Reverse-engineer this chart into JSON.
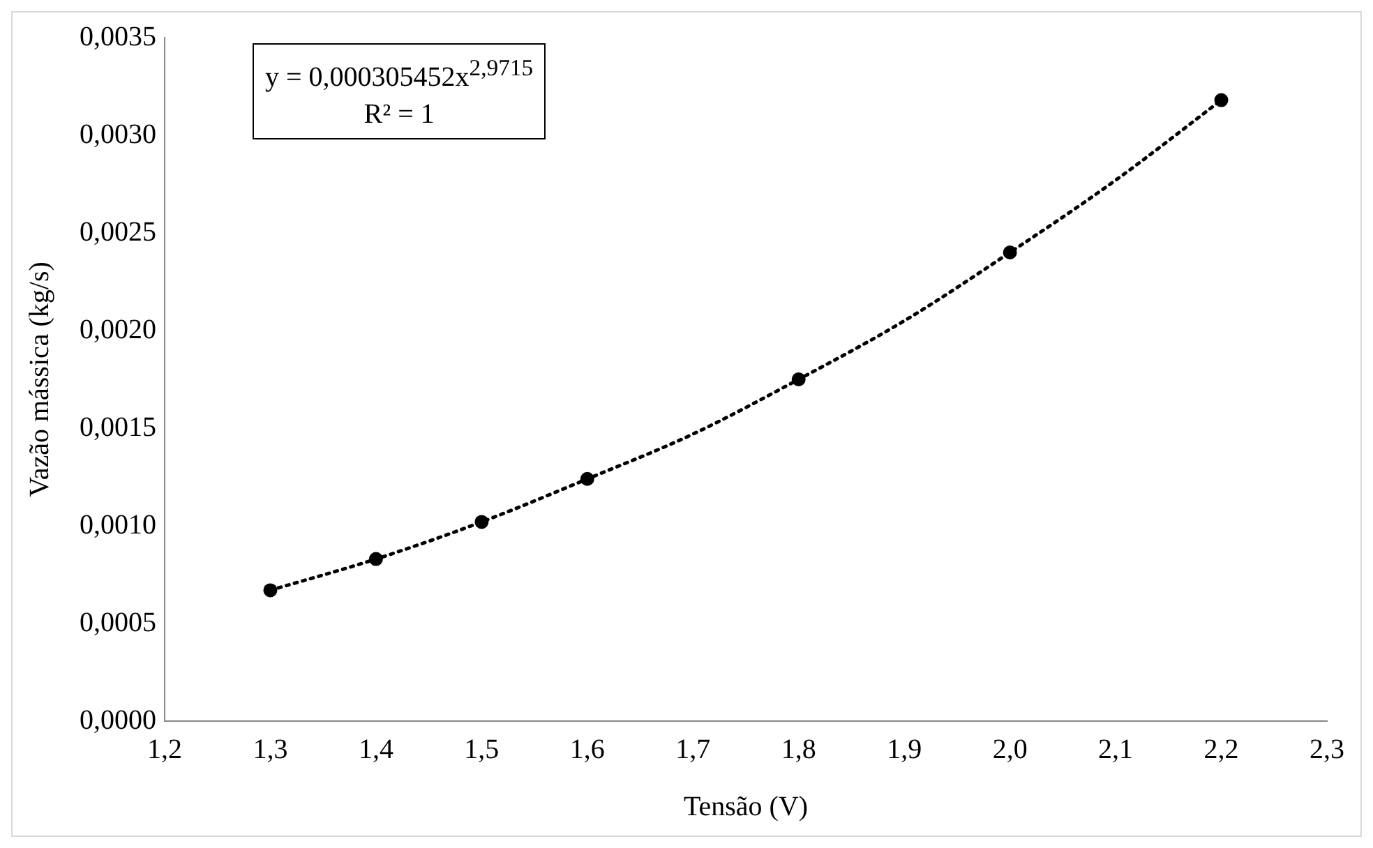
{
  "chart_data": {
    "type": "scatter",
    "xlabel": "Tensão (V)",
    "ylabel": "Vazão mássica (kg/s)",
    "annotations": [
      "y = 0,000305452x$^{2,9715}$",
      "R² = 1"
    ],
    "xlim": [
      1.2,
      2.3
    ],
    "xticks": [
      {
        "value": 1.2,
        "label": "1,2"
      },
      {
        "value": 1.3,
        "label": "1,3"
      },
      {
        "value": 1.4,
        "label": "1,4"
      },
      {
        "value": 1.5,
        "label": "1,5"
      },
      {
        "value": 1.6,
        "label": "1,6"
      },
      {
        "value": 1.7,
        "label": "1,7"
      },
      {
        "value": 1.8,
        "label": "1,8"
      },
      {
        "value": 1.9,
        "label": "1,9"
      },
      {
        "value": 2.0,
        "label": "2,0"
      },
      {
        "value": 2.1,
        "label": "2,1"
      },
      {
        "value": 2.2,
        "label": "2,2"
      },
      {
        "value": 2.3,
        "label": "2,3"
      }
    ],
    "ylim": [
      0,
      0.0035
    ],
    "yticks": [
      {
        "value": 0,
        "label": "0,0000"
      },
      {
        "value": 0.0005,
        "label": "0,0005"
      },
      {
        "value": 0.001,
        "label": "0,0010"
      },
      {
        "value": 0.0015,
        "label": "0,0015"
      },
      {
        "value": 0.002,
        "label": "0,0020"
      },
      {
        "value": 0.0025,
        "label": "0,0025"
      },
      {
        "value": 0.003,
        "label": "0,0030"
      },
      {
        "value": 0.0035,
        "label": "0,0035"
      }
    ],
    "grid": false,
    "marker": "circle",
    "series": [
      {
        "type": "line",
        "color": "#000000",
        "line_style": "dotted",
        "marker": "none",
        "x": [
          1.3,
          1.4,
          1.5,
          1.6,
          1.7,
          1.8,
          1.9,
          2.0,
          2.1,
          2.2
        ],
        "values": [
          0.00067,
          0.00083,
          0.00102,
          0.00124,
          0.00147,
          0.00175,
          0.00205,
          0.0024,
          0.00277,
          0.00318
        ]
      },
      {
        "type": "scatter",
        "color": "#000000",
        "x": [
          1.3,
          1.4,
          1.5,
          1.6,
          1.8,
          2.0,
          2.2
        ],
        "values": [
          0.00067,
          0.00083,
          0.00102,
          0.00124,
          0.00175,
          0.0024,
          0.00318
        ]
      }
    ]
  }
}
